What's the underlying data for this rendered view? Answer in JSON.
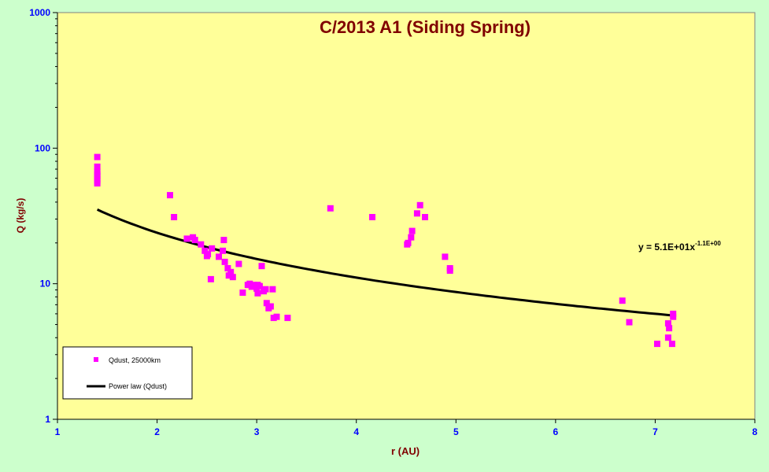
{
  "chart_data": {
    "type": "scatter",
    "title": "C/2013 A1 (Siding Spring)",
    "xlabel": "r (AU)",
    "ylabel": "Q (kg/s)",
    "xlim": [
      1,
      8
    ],
    "ylim": [
      1,
      1000
    ],
    "y_scale": "log",
    "x_ticks": [
      1,
      2,
      3,
      4,
      5,
      6,
      7,
      8
    ],
    "y_ticks": [
      1,
      10,
      100,
      1000
    ],
    "x_tick_labels": [
      "1",
      "2",
      "3",
      "4",
      "5",
      "6",
      "7",
      "8"
    ],
    "y_tick_labels": [
      "1",
      "10",
      "100",
      "1000"
    ],
    "grid": false,
    "legend_position": "bottom-left",
    "colors": {
      "background": "#ccffcc",
      "plot_area": "#ffff99",
      "points": "#ff00ff",
      "fit_line": "#000000",
      "title": "#800000",
      "axis_label": "#800000",
      "tick_label": "#0000ff"
    },
    "series": [
      {
        "name": "Qdust, 25000km",
        "type": "scatter",
        "x": [
          1.4,
          1.4,
          1.4,
          1.4,
          1.4,
          1.4,
          1.4,
          1.4,
          2.13,
          2.17,
          2.3,
          2.36,
          2.38,
          2.44,
          2.48,
          2.5,
          2.51,
          2.54,
          2.55,
          2.62,
          2.66,
          2.67,
          2.68,
          2.71,
          2.72,
          2.74,
          2.76,
          2.82,
          2.86,
          2.91,
          2.93,
          2.95,
          2.97,
          3.0,
          3.01,
          3.01,
          3.03,
          3.05,
          3.07,
          3.09,
          3.1,
          3.12,
          3.14,
          3.16,
          3.17,
          3.2,
          3.31,
          3.74,
          4.16,
          4.51,
          4.52,
          4.55,
          4.56,
          4.61,
          4.64,
          4.69,
          4.89,
          4.94,
          4.94,
          6.67,
          6.74,
          7.02,
          7.13,
          7.13,
          7.14,
          7.17,
          7.18,
          7.18
        ],
        "y": [
          86,
          73,
          67,
          64,
          62,
          59,
          57,
          55,
          45,
          31,
          21.5,
          22,
          21,
          19.5,
          17.5,
          16,
          16.5,
          10.8,
          18.2,
          15.8,
          17.5,
          21,
          14.5,
          13,
          11.5,
          12.2,
          11.2,
          14,
          8.6,
          9.8,
          10,
          9.5,
          9.8,
          9.2,
          8.5,
          9.8,
          9.6,
          13.5,
          8.8,
          9.1,
          7.2,
          6.6,
          6.8,
          9.1,
          5.6,
          5.7,
          5.6,
          36,
          31,
          19.5,
          20,
          22,
          24.5,
          33,
          38,
          31,
          15.8,
          13,
          12.5,
          7.5,
          5.2,
          3.6,
          4,
          5.1,
          4.7,
          3.6,
          5.7,
          6
        ]
      },
      {
        "name": "Power law (Qdust)",
        "type": "line",
        "fit": {
          "a": 51,
          "b": -1.1
        },
        "x_range": [
          1.4,
          7.18
        ]
      }
    ],
    "annotations": [
      {
        "text": "y = 5.1E+01x",
        "superscript": "-1.1E+00"
      }
    ]
  }
}
